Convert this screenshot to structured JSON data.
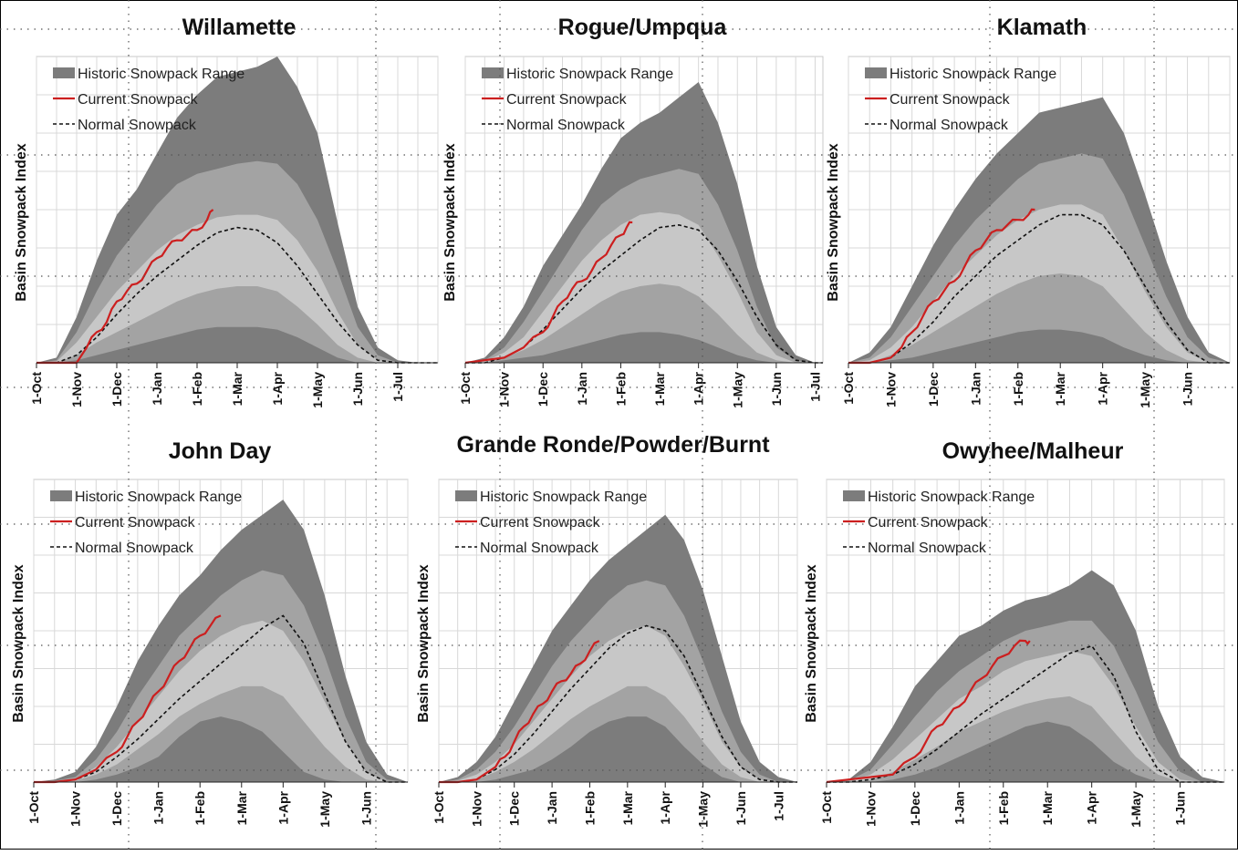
{
  "figure": {
    "legend": {
      "range": "Historic Snowpack Range",
      "current": "Current Snowpack",
      "normal": "Normal Snowpack"
    },
    "ylabel": "Basin Snowpack Index",
    "colors": {
      "band_outer": "#7c7c7c",
      "band_middle": "#a3a3a3",
      "band_inner": "#c7c7c7",
      "current": "#cc1f1f",
      "normal": "#111111",
      "grid": "#d8d8d8"
    }
  },
  "chart_data": [
    {
      "type": "area",
      "title": "Willamette",
      "ylabel": "Basin Snowpack Index",
      "x_ticks": [
        "1-Oct",
        "1-Nov",
        "1-Dec",
        "1-Jan",
        "1-Feb",
        "1-Mar",
        "1-Apr",
        "1-May",
        "1-Jun",
        "1-Jul"
      ],
      "x_end_month_index": 10,
      "ylim": [
        0,
        120
      ],
      "x_month": [
        0,
        0.5,
        1,
        1.5,
        2,
        2.5,
        3,
        3.5,
        4,
        4.5,
        5,
        5.5,
        6,
        6.5,
        7,
        7.5,
        8,
        8.5,
        9,
        9.5,
        10
      ],
      "range": {
        "max": [
          0,
          2,
          18,
          40,
          58,
          68,
          82,
          96,
          105,
          112,
          114,
          116,
          120,
          108,
          90,
          55,
          22,
          6,
          1,
          0,
          0
        ],
        "p90": [
          0,
          1,
          12,
          28,
          42,
          52,
          62,
          70,
          74,
          76,
          78,
          79,
          78,
          70,
          56,
          36,
          14,
          3,
          0,
          0,
          0
        ],
        "p70": [
          0,
          0.5,
          8,
          18,
          28,
          36,
          44,
          50,
          54,
          57,
          58,
          58,
          56,
          48,
          36,
          20,
          7,
          1,
          0,
          0,
          0
        ],
        "p30": [
          0,
          0,
          3,
          8,
          12,
          16,
          20,
          24,
          27,
          29,
          30,
          30,
          28,
          22,
          15,
          7,
          2,
          0,
          0,
          0,
          0
        ],
        "p10": [
          0,
          0,
          1,
          3,
          5,
          7,
          9,
          11,
          13,
          14,
          14,
          14,
          13,
          10,
          6,
          2,
          0,
          0,
          0,
          0,
          0
        ]
      },
      "normal": [
        0,
        0,
        3,
        10,
        19,
        27,
        34,
        40,
        46,
        51,
        53,
        52,
        47,
        38,
        27,
        16,
        7,
        1,
        0,
        0,
        0
      ],
      "current": {
        "x": [
          0,
          0.5,
          1,
          1.25,
          1.5,
          1.75,
          2,
          2.25,
          2.5,
          2.75,
          3,
          3.25,
          3.5,
          3.75,
          4,
          4.25,
          4.4
        ],
        "y": [
          0,
          0,
          0,
          6,
          12,
          16,
          24,
          28,
          31,
          36,
          41,
          45,
          48,
          50,
          52,
          56,
          60
        ]
      }
    },
    {
      "type": "area",
      "title": "Rogue/Umpqua",
      "ylabel": "Basin Snowpack Index",
      "x_ticks": [
        "1-Oct",
        "1-Nov",
        "1-Dec",
        "1-Jan",
        "1-Feb",
        "1-Mar",
        "1-Apr",
        "1-May",
        "1-Jun",
        "1-Jul"
      ],
      "x_end_month_index": 9.2,
      "ylim": [
        0,
        120
      ],
      "x_month": [
        0,
        0.5,
        1,
        1.5,
        2,
        2.5,
        3,
        3.5,
        4,
        4.5,
        5,
        5.5,
        6,
        6.5,
        7,
        7.5,
        8,
        8.5,
        9,
        9.2
      ],
      "range": {
        "max": [
          0,
          2,
          10,
          22,
          38,
          50,
          62,
          76,
          88,
          94,
          98,
          104,
          110,
          94,
          70,
          38,
          14,
          3,
          0,
          0
        ],
        "p90": [
          0,
          1,
          6,
          16,
          28,
          40,
          52,
          62,
          68,
          72,
          74,
          76,
          74,
          62,
          44,
          22,
          6,
          1,
          0,
          0
        ],
        "p70": [
          0,
          0.5,
          4,
          10,
          20,
          30,
          40,
          48,
          54,
          58,
          59,
          58,
          54,
          42,
          28,
          12,
          3,
          0,
          0,
          0
        ],
        "p30": [
          0,
          0,
          2,
          5,
          9,
          14,
          19,
          24,
          28,
          30,
          31,
          30,
          26,
          19,
          11,
          4,
          1,
          0,
          0,
          0
        ],
        "p10": [
          0,
          0,
          1,
          2,
          3,
          5,
          7,
          9,
          11,
          12,
          12,
          11,
          9,
          6,
          3,
          1,
          0,
          0,
          0,
          0
        ]
      },
      "normal": [
        0,
        0,
        2,
        6,
        13,
        21,
        29,
        36,
        42,
        48,
        53,
        54,
        52,
        44,
        32,
        18,
        7,
        1,
        0,
        0
      ],
      "current": {
        "x": [
          0,
          0.5,
          1,
          1.5,
          2,
          2.25,
          2.5,
          2.75,
          3,
          3.25,
          3.5,
          3.75,
          4,
          4.15,
          4.3
        ],
        "y": [
          0,
          1,
          2,
          6,
          12,
          18,
          24,
          29,
          32,
          36,
          41,
          46,
          50,
          53,
          55
        ]
      }
    },
    {
      "type": "area",
      "title": "Klamath",
      "ylabel": "Basin Snowpack Index",
      "x_ticks": [
        "1-Oct",
        "1-Nov",
        "1-Dec",
        "1-Jan",
        "1-Feb",
        "1-Mar",
        "1-Apr",
        "1-May",
        "1-Jun"
      ],
      "x_end_month_index": 9,
      "ylim": [
        0,
        120
      ],
      "x_month": [
        0,
        0.5,
        1,
        1.5,
        2,
        2.5,
        3,
        3.5,
        4,
        4.5,
        5,
        5.5,
        6,
        6.5,
        7,
        7.5,
        8,
        8.5,
        9
      ],
      "range": {
        "max": [
          0,
          4,
          14,
          30,
          46,
          60,
          72,
          82,
          90,
          98,
          100,
          102,
          104,
          90,
          66,
          40,
          18,
          4,
          0
        ],
        "p90": [
          0,
          2,
          10,
          22,
          34,
          46,
          56,
          64,
          72,
          78,
          80,
          82,
          80,
          66,
          46,
          26,
          10,
          2,
          0
        ],
        "p70": [
          0,
          1,
          6,
          14,
          24,
          34,
          42,
          50,
          56,
          60,
          62,
          62,
          58,
          44,
          28,
          14,
          4,
          0,
          0
        ],
        "p30": [
          0,
          0,
          3,
          7,
          12,
          17,
          22,
          27,
          31,
          34,
          35,
          34,
          30,
          21,
          12,
          5,
          1,
          0,
          0
        ],
        "p10": [
          0,
          0,
          1,
          2,
          4,
          6,
          8,
          10,
          12,
          13,
          13,
          12,
          10,
          6,
          3,
          1,
          0,
          0,
          0
        ]
      },
      "normal": [
        0,
        0,
        2,
        8,
        16,
        26,
        34,
        42,
        48,
        54,
        58,
        58,
        54,
        44,
        30,
        16,
        5,
        0,
        0
      ],
      "current": {
        "x": [
          0,
          0.5,
          1,
          1.25,
          1.5,
          1.75,
          2,
          2.25,
          2.5,
          2.75,
          3,
          3.25,
          3.5,
          3.75,
          4,
          4.25,
          4.4
        ],
        "y": [
          0,
          0,
          2,
          6,
          12,
          18,
          24,
          28,
          32,
          38,
          44,
          48,
          52,
          54,
          56,
          58,
          60
        ]
      }
    },
    {
      "type": "area",
      "title": "John Day",
      "ylabel": "Basin Snowpack Index",
      "x_ticks": [
        "1-Oct",
        "1-Nov",
        "1-Dec",
        "1-Jan",
        "1-Feb",
        "1-Mar",
        "1-Apr",
        "1-May",
        "1-Jun"
      ],
      "x_end_month_index": 9,
      "ylim": [
        0,
        120
      ],
      "x_month": [
        0,
        0.5,
        1,
        1.5,
        2,
        2.5,
        3,
        3.5,
        4,
        4.5,
        5,
        5.5,
        6,
        6.5,
        7,
        7.5,
        8,
        8.5,
        9
      ],
      "range": {
        "max": [
          0,
          1,
          4,
          14,
          30,
          48,
          62,
          74,
          82,
          92,
          100,
          106,
          112,
          100,
          74,
          42,
          16,
          3,
          0
        ],
        "p90": [
          0,
          0.5,
          2,
          9,
          20,
          34,
          46,
          58,
          66,
          74,
          80,
          84,
          82,
          70,
          50,
          26,
          8,
          1,
          0
        ],
        "p70": [
          0,
          0,
          1,
          6,
          14,
          24,
          34,
          44,
          52,
          58,
          62,
          64,
          60,
          48,
          32,
          16,
          4,
          0,
          0
        ],
        "p30": [
          0,
          0,
          0.5,
          3,
          7,
          13,
          19,
          26,
          31,
          35,
          38,
          38,
          34,
          24,
          14,
          6,
          1,
          0,
          0
        ],
        "p10": [
          0,
          0,
          0,
          1,
          3,
          6,
          10,
          18,
          24,
          26,
          24,
          20,
          12,
          4,
          1,
          0,
          0,
          0,
          0
        ]
      },
      "normal": [
        0,
        0,
        1,
        4,
        10,
        17,
        25,
        33,
        40,
        47,
        54,
        61,
        66,
        55,
        35,
        16,
        4,
        0,
        0
      ],
      "current": {
        "x": [
          0,
          0.5,
          1,
          1.5,
          2,
          2.25,
          2.5,
          2.75,
          3,
          3.25,
          3.5,
          3.75,
          4,
          4.25,
          4.5
        ],
        "y": [
          0,
          0,
          1,
          5,
          12,
          18,
          24,
          30,
          36,
          42,
          48,
          53,
          58,
          62,
          66
        ]
      }
    },
    {
      "type": "area",
      "title": "Grande Ronde/Powder/Burnt",
      "ylabel": "Basin Snowpack Index",
      "x_ticks": [
        "1-Oct",
        "1-Nov",
        "1-Dec",
        "1-Jan",
        "1-Feb",
        "1-Mar",
        "1-Apr",
        "1-May",
        "1-Jun",
        "1-Jul"
      ],
      "x_end_month_index": 9.5,
      "ylim": [
        0,
        120
      ],
      "x_month": [
        0,
        0.5,
        1,
        1.5,
        2,
        2.5,
        3,
        3.5,
        4,
        4.5,
        5,
        5.5,
        6,
        6.5,
        7,
        7.5,
        8,
        8.5,
        9,
        9.5
      ],
      "range": {
        "max": [
          0,
          2,
          8,
          18,
          32,
          46,
          60,
          70,
          80,
          88,
          94,
          100,
          106,
          96,
          76,
          50,
          24,
          8,
          2,
          0
        ],
        "p90": [
          0,
          1,
          5,
          12,
          22,
          34,
          46,
          56,
          64,
          72,
          78,
          80,
          78,
          66,
          48,
          28,
          12,
          3,
          0,
          0
        ],
        "p70": [
          0,
          0.5,
          3,
          8,
          15,
          24,
          33,
          42,
          50,
          56,
          60,
          62,
          58,
          46,
          32,
          16,
          6,
          1,
          0,
          0
        ],
        "p30": [
          0,
          0,
          1,
          4,
          8,
          13,
          19,
          25,
          30,
          34,
          38,
          38,
          34,
          26,
          16,
          7,
          2,
          0,
          0,
          0
        ],
        "p10": [
          0,
          0,
          0,
          1,
          3,
          5,
          9,
          14,
          20,
          24,
          26,
          26,
          22,
          14,
          7,
          2,
          0,
          0,
          0,
          0
        ]
      },
      "normal": [
        0,
        0,
        1,
        5,
        11,
        19,
        28,
        37,
        45,
        53,
        59,
        62,
        60,
        50,
        34,
        18,
        6,
        1,
        0,
        0
      ],
      "current": {
        "x": [
          0,
          0.5,
          1,
          1.5,
          1.75,
          2,
          2.25,
          2.5,
          2.75,
          3,
          3.25,
          3.5,
          3.75,
          4,
          4.25
        ],
        "y": [
          0,
          0,
          1,
          6,
          10,
          16,
          22,
          27,
          31,
          36,
          40,
          43,
          47,
          52,
          56
        ]
      }
    },
    {
      "type": "area",
      "title": "Owyhee/Malheur",
      "ylabel": "Basin Snowpack Index",
      "x_ticks": [
        "1-Oct",
        "1-Nov",
        "1-Dec",
        "1-Jan",
        "1-Feb",
        "1-Mar",
        "1-Apr",
        "1-May",
        "1-Jun"
      ],
      "x_end_month_index": 9,
      "ylim": [
        0,
        120
      ],
      "x_month": [
        0,
        0.5,
        1,
        1.5,
        2,
        2.5,
        3,
        3.5,
        4,
        4.5,
        5,
        5.5,
        6,
        6.5,
        7,
        7.5,
        8,
        8.5,
        9
      ],
      "range": {
        "max": [
          0,
          1,
          8,
          22,
          38,
          48,
          58,
          62,
          68,
          72,
          74,
          78,
          84,
          78,
          60,
          30,
          10,
          2,
          0
        ],
        "p90": [
          0,
          0.5,
          5,
          15,
          26,
          36,
          44,
          50,
          56,
          60,
          62,
          64,
          64,
          54,
          36,
          16,
          4,
          0,
          0
        ],
        "p70": [
          0,
          0,
          3,
          9,
          17,
          25,
          33,
          38,
          44,
          48,
          50,
          52,
          50,
          38,
          22,
          8,
          1,
          0,
          0
        ],
        "p30": [
          0,
          0,
          1,
          4,
          9,
          14,
          20,
          24,
          28,
          31,
          33,
          34,
          30,
          20,
          10,
          3,
          0,
          0,
          0
        ],
        "p10": [
          0,
          0,
          0,
          1,
          3,
          6,
          10,
          14,
          18,
          22,
          24,
          22,
          16,
          8,
          3,
          0,
          0,
          0,
          0
        ]
      },
      "normal": [
        0,
        0,
        1,
        3,
        7,
        13,
        20,
        27,
        33,
        39,
        45,
        51,
        54,
        42,
        20,
        5,
        0,
        0,
        0
      ],
      "current": {
        "x": [
          0,
          0.5,
          1,
          1.5,
          2,
          2.25,
          2.5,
          2.75,
          3,
          3.25,
          3.5,
          3.75,
          4,
          4.25,
          4.5,
          4.6
        ],
        "y": [
          0,
          1,
          2,
          3,
          10,
          16,
          22,
          26,
          30,
          36,
          41,
          46,
          50,
          54,
          56,
          56
        ]
      }
    }
  ]
}
